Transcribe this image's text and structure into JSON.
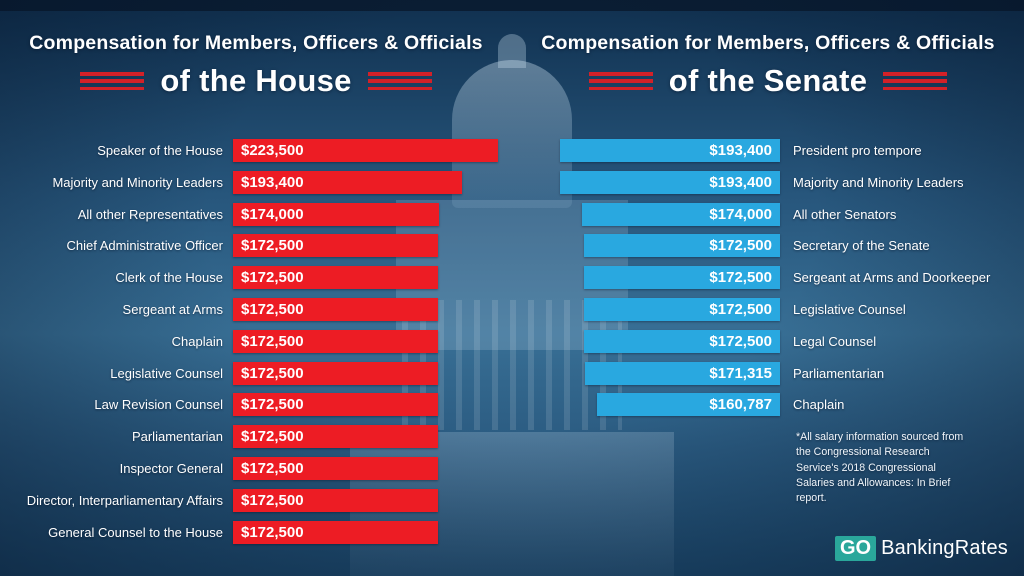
{
  "chart_data": [
    {
      "type": "bar",
      "orientation": "horizontal",
      "title": "Compensation for Members, Officers & Officials of the House",
      "title_line1": "Compensation for Members, Officers & Officials",
      "title_line2": "of the House",
      "bar_color": "#ed1c24",
      "labels_side": "left",
      "xlabel": "",
      "ylabel": "",
      "categories": [
        "Speaker of the House",
        "Majority and Minority Leaders",
        "All other Representatives",
        "Chief Administrative Officer",
        "Clerk of the House",
        "Sergeant at Arms",
        "Chaplain",
        "Legislative Counsel",
        "Law Revision Counsel",
        "Parliamentarian",
        "Inspector General",
        "Director, Interparliamentary Affairs",
        "General Counsel to the House"
      ],
      "values": [
        223500,
        193400,
        174000,
        172500,
        172500,
        172500,
        172500,
        172500,
        172500,
        172500,
        172500,
        172500,
        172500
      ],
      "value_labels": [
        "$223,500",
        "$193,400",
        "$174,000",
        "$172,500",
        "$172,500",
        "$172,500",
        "$172,500",
        "$172,500",
        "$172,500",
        "$172,500",
        "$172,500",
        "$172,500",
        "$172,500"
      ]
    },
    {
      "type": "bar",
      "orientation": "horizontal",
      "title": "Compensation for Members, Officers & Officials of the Senate",
      "title_line1": "Compensation for Members, Officers & Officials",
      "title_line2": "of the Senate",
      "bar_color": "#29a8e0",
      "labels_side": "right",
      "xlabel": "",
      "ylabel": "",
      "categories": [
        "President pro tempore",
        "Majority and Minority Leaders",
        "All other Senators",
        "Secretary of the Senate",
        "Sergeant at Arms and Doorkeeper",
        "Legislative Counsel",
        "Legal Counsel",
        "Parliamentarian",
        "Chaplain"
      ],
      "values": [
        193400,
        193400,
        174000,
        172500,
        172500,
        172500,
        172500,
        171315,
        160787
      ],
      "value_labels": [
        "$193,400",
        "$193,400",
        "$174,000",
        "$172,500",
        "$172,500",
        "$172,500",
        "$172,500",
        "$171,315",
        "$160,787"
      ]
    }
  ],
  "footnote": "*All salary information sourced from the Congressional Research Service's 2018 Congressional Salaries and Allowances: In Brief report.",
  "logo": {
    "go": "GO",
    "rest": "BankingRates"
  },
  "colors": {
    "house_bar": "#ed1c24",
    "senate_bar": "#29a8e0",
    "stripe_red": "#d32128",
    "logo_teal": "#2aa79b",
    "background_blue": "#27567c"
  }
}
